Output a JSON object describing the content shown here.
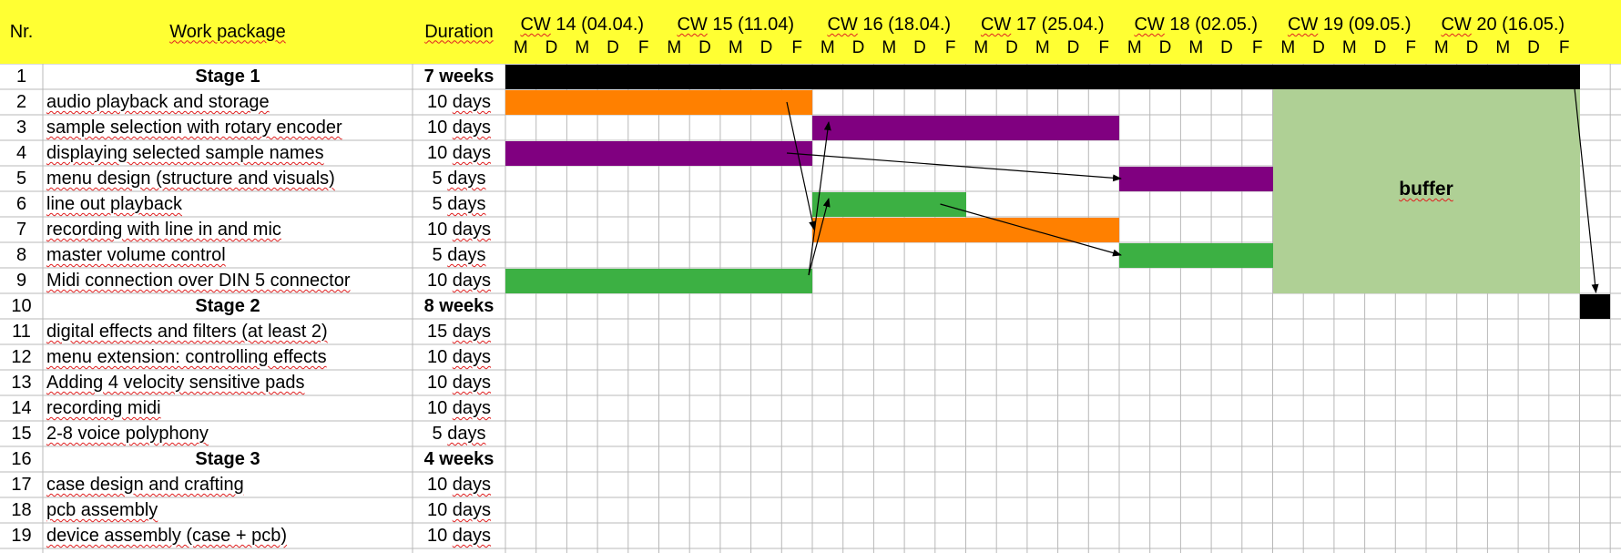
{
  "colors": {
    "header_bg": "#ffff33",
    "grid_line": "#b8b8b8",
    "orange": "#ff8000",
    "purple": "#800080",
    "green": "#3cb043",
    "buffer": "#afd095",
    "black": "#000000",
    "spellcheck": "#e02020"
  },
  "header": {
    "nr": "Nr.",
    "work_package": "Work package",
    "duration": "Duration",
    "weeks": [
      "CW 14 (04.04.)",
      "CW 15 (11.04)",
      "CW 16 (18.04.)",
      "CW 17 (25.04.)",
      "CW 18 (02.05.)",
      "CW 19 (09.05.)",
      "CW 20 (16.05.)"
    ],
    "days": [
      "M",
      "D",
      "M",
      "D",
      "F"
    ]
  },
  "rows": [
    {
      "nr": "1",
      "task": "Stage 1",
      "duration": "7 weeks",
      "bold": true
    },
    {
      "nr": "2",
      "task": "audio playback and storage",
      "duration": "10 days"
    },
    {
      "nr": "3",
      "task": "sample selection with rotary encoder",
      "duration": "10 days"
    },
    {
      "nr": "4",
      "task": "displaying selected sample names",
      "duration": "10 days"
    },
    {
      "nr": "5",
      "task": "menu design (structure and visuals)",
      "duration": "5 days"
    },
    {
      "nr": "6",
      "task": "line out playback",
      "duration": "5 days"
    },
    {
      "nr": "7",
      "task": "recording with line in and mic",
      "duration": "10 days"
    },
    {
      "nr": "8",
      "task": "master volume control",
      "duration": "5 days"
    },
    {
      "nr": "9",
      "task": "Midi connection over DIN 5 connector",
      "duration": "10 days"
    },
    {
      "nr": "10",
      "task": "Stage 2",
      "duration": "8 weeks",
      "bold": true
    },
    {
      "nr": "11",
      "task": "digital effects and filters (at least 2)",
      "duration": "15 days"
    },
    {
      "nr": "12",
      "task": "menu extension: controlling effects",
      "duration": "10 days"
    },
    {
      "nr": "13",
      "task": "Adding 4 velocity sensitive pads",
      "duration": "10 days"
    },
    {
      "nr": "14",
      "task": "recording midi",
      "duration": "10 days"
    },
    {
      "nr": "15",
      "task": "2-8 voice polyphony",
      "duration": "5 days"
    },
    {
      "nr": "16",
      "task": "Stage 3",
      "duration": "4 weeks",
      "bold": true
    },
    {
      "nr": "17",
      "task": "case design and crafting",
      "duration": "10 days"
    },
    {
      "nr": "18",
      "task": "pcb assembly",
      "duration": "10 days"
    },
    {
      "nr": "19",
      "task": "device assembly (case + pcb)",
      "duration": "10 days"
    }
  ],
  "bars": [
    {
      "row": 1,
      "start_day": 0,
      "days": 35,
      "color": "black"
    },
    {
      "row": 2,
      "start_day": 0,
      "days": 10,
      "color": "orange"
    },
    {
      "row": 3,
      "start_day": 10,
      "days": 10,
      "color": "purple"
    },
    {
      "row": 4,
      "start_day": 0,
      "days": 10,
      "color": "purple"
    },
    {
      "row": 5,
      "start_day": 20,
      "days": 5,
      "color": "purple"
    },
    {
      "row": 6,
      "start_day": 10,
      "days": 5,
      "color": "green"
    },
    {
      "row": 7,
      "start_day": 10,
      "days": 10,
      "color": "orange"
    },
    {
      "row": 8,
      "start_day": 20,
      "days": 5,
      "color": "green"
    },
    {
      "row": 9,
      "start_day": 0,
      "days": 10,
      "color": "green"
    },
    {
      "row": 10,
      "start_day": 35,
      "days": 1,
      "color": "black"
    }
  ],
  "buffer": {
    "label": "buffer",
    "row_start": 2,
    "row_end": 9,
    "start_day": 25,
    "days": 10
  },
  "dependencies": [
    {
      "from": "audio playback and storage",
      "to": "recording with line in and mic"
    },
    {
      "from": "Midi connection over DIN 5 connector",
      "to": "sample selection with rotary encoder"
    },
    {
      "from": "displaying selected sample names",
      "to": "menu design (structure and visuals)"
    },
    {
      "from": "Midi connection over DIN 5 connector",
      "to": "line out playback"
    },
    {
      "from": "line out playback",
      "to": "master volume control"
    },
    {
      "from": "Stage 1",
      "to": "Stage 2"
    }
  ]
}
